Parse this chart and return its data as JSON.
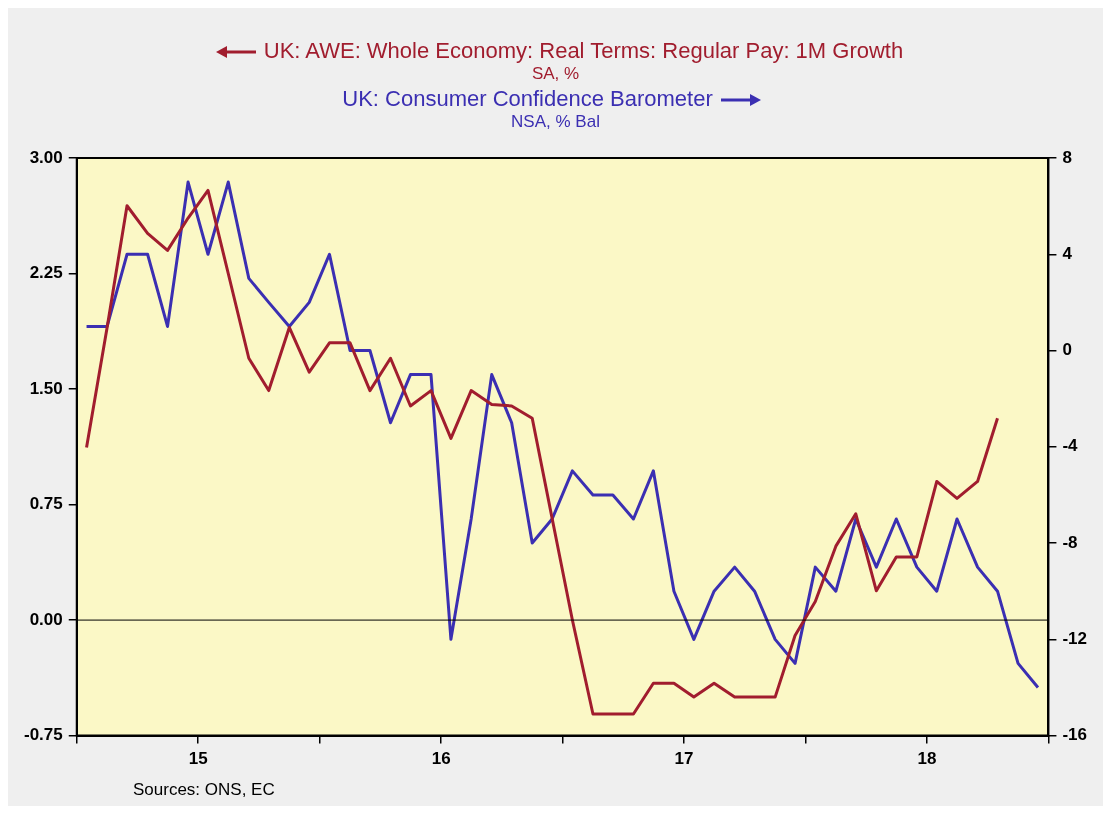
{
  "chart_data": {
    "type": "line",
    "x": [
      "2015-01-16",
      "2015-02-15",
      "2015-03-16",
      "2015-04-16",
      "2015-05-16",
      "2015-06-16",
      "2015-07-16",
      "2015-08-16",
      "2015-09-16",
      "2015-10-16",
      "2015-11-16",
      "2015-12-16",
      "2016-01-16",
      "2016-02-15",
      "2016-03-16",
      "2016-04-16",
      "2016-05-16",
      "2016-06-16",
      "2016-07-16",
      "2016-08-16",
      "2016-09-16",
      "2016-10-16",
      "2016-11-16",
      "2016-12-16",
      "2017-01-16",
      "2017-02-15",
      "2017-03-16",
      "2017-04-16",
      "2017-05-16",
      "2017-06-16",
      "2017-07-16",
      "2017-08-16",
      "2017-09-16",
      "2017-10-16",
      "2017-11-16",
      "2017-12-16",
      "2018-01-16",
      "2018-02-15",
      "2018-03-16",
      "2018-04-16",
      "2018-05-16",
      "2018-06-16",
      "2018-07-16",
      "2018-08-16",
      "2018-09-16",
      "2018-10-16",
      "2018-11-16",
      "2018-12-16"
    ],
    "series": [
      {
        "name": "UK: AWE: Whole Economy: Real Terms: Regular Pay: 1M Growth",
        "color": "#a11d2e",
        "axis": "y",
        "values": [
          1.12,
          1.9,
          2.69,
          2.51,
          2.4,
          2.61,
          2.79,
          2.25,
          1.7,
          1.49,
          1.9,
          1.61,
          1.8,
          1.8,
          1.49,
          1.7,
          1.39,
          1.49,
          1.18,
          1.49,
          1.4,
          1.39,
          1.31,
          0.66,
          0.0,
          -0.61,
          -0.61,
          -0.61,
          -0.41,
          -0.41,
          -0.5,
          -0.41,
          -0.5,
          -0.5,
          -0.5,
          -0.1,
          0.12,
          0.48,
          0.69,
          0.19,
          0.41,
          0.41,
          0.9,
          0.79,
          0.9,
          1.31,
          null,
          null
        ]
      },
      {
        "name": "UK: Consumer Confidence Barometer",
        "color": "#3b2fb2",
        "axis": "y2",
        "values": [
          1,
          1,
          4,
          4,
          1,
          7,
          4,
          7,
          3,
          2,
          1,
          2,
          4,
          0,
          0,
          -3,
          -1,
          -1,
          -12,
          -7,
          -1,
          -3,
          -8,
          -7,
          -5,
          -6,
          -6,
          -7,
          -5,
          -10,
          -12,
          -10,
          -9,
          -10,
          -12,
          -13,
          -9,
          -10,
          -7,
          -9,
          -7,
          -9,
          -10,
          -7,
          -9,
          -10,
          -13,
          -14
        ]
      }
    ],
    "xlim": [
      "2015",
      "2019"
    ],
    "xticks": [
      {
        "value": "2015",
        "label": null
      },
      {
        "value": "2015-07-01",
        "label": "15"
      },
      {
        "value": "2016",
        "label": null
      },
      {
        "value": "2016-07-01",
        "label": "16"
      },
      {
        "value": "2017",
        "label": null
      },
      {
        "value": "2017-07-01",
        "label": "17"
      },
      {
        "value": "2018",
        "label": null
      },
      {
        "value": "2018-07-01",
        "label": "18"
      },
      {
        "value": "2019",
        "label": null
      }
    ],
    "ylim": [
      -0.75,
      3
    ],
    "yticks": [
      {
        "value": -0.75,
        "label": "-0.75"
      },
      {
        "value": 0,
        "label": "0.00"
      },
      {
        "value": 0.75,
        "label": "0.75"
      },
      {
        "value": 1.5,
        "label": "1.50"
      },
      {
        "value": 2.25,
        "label": "2.25"
      },
      {
        "value": 3,
        "label": "3.00"
      }
    ],
    "y2lim": [
      -16,
      8
    ],
    "y2ticks": [
      -16,
      -12,
      -8,
      -4,
      0,
      4,
      8
    ],
    "ref_lines": [
      {
        "axis": "y",
        "value": 0,
        "label": null,
        "color": "#000000"
      }
    ],
    "legend": "top",
    "annotations": [
      "SA, %",
      "NSA, % Bal",
      "Sources:  ONS, EC"
    ]
  }
}
